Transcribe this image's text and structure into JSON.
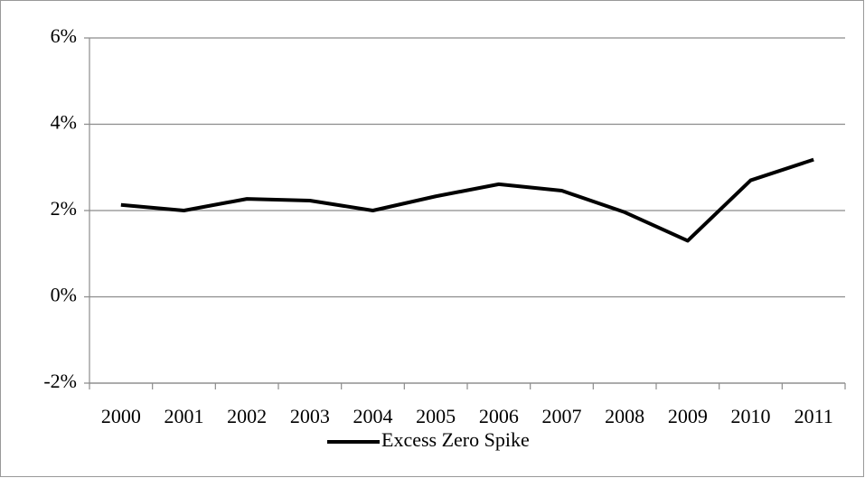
{
  "chart_data": {
    "type": "line",
    "categories": [
      "2000",
      "2001",
      "2002",
      "2003",
      "2004",
      "2005",
      "2006",
      "2007",
      "2008",
      "2009",
      "2010",
      "2011"
    ],
    "series": [
      {
        "name": "Excess Zero Spike",
        "color": "#000000",
        "values": [
          2.13,
          2.0,
          2.27,
          2.23,
          2.0,
          2.33,
          2.61,
          2.46,
          1.96,
          1.3,
          2.7,
          3.18
        ]
      }
    ],
    "ylim": [
      -2,
      6
    ],
    "yticks": [
      {
        "value": -2,
        "label": "-2%"
      },
      {
        "value": 0,
        "label": "0%"
      },
      {
        "value": 2,
        "label": "2%"
      },
      {
        "value": 4,
        "label": "4%"
      },
      {
        "value": 6,
        "label": "6%"
      }
    ],
    "grid": true,
    "legend": "bottom"
  }
}
